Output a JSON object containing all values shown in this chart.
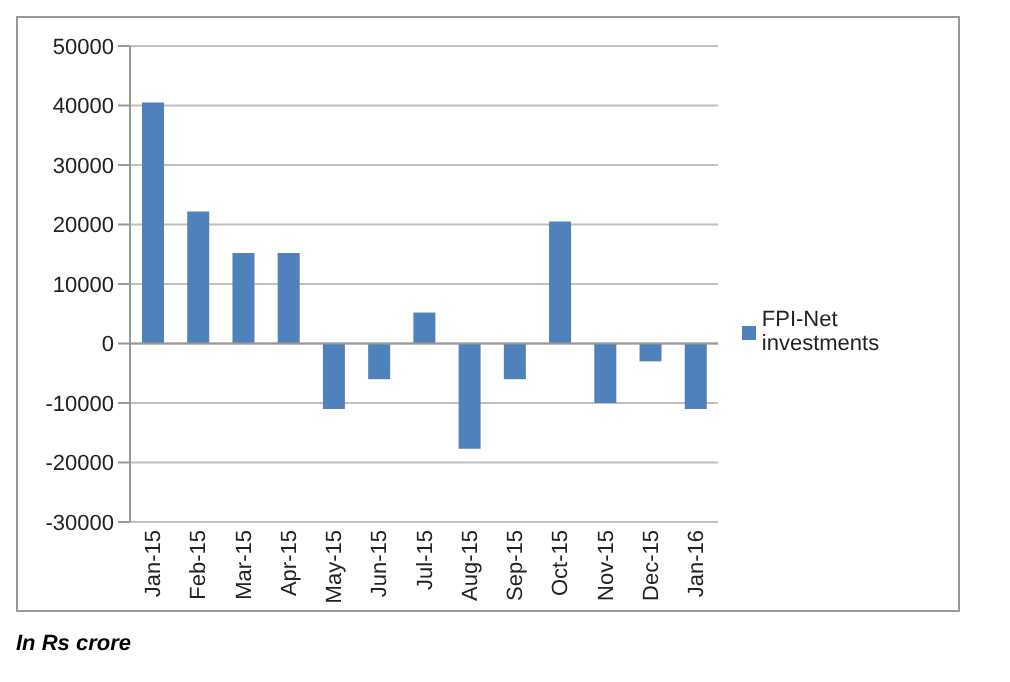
{
  "chart_data": {
    "type": "bar",
    "categories": [
      "Jan-15",
      "Feb-15",
      "Mar-15",
      "Apr-15",
      "May-15",
      "Jun-15",
      "Jul-15",
      "Aug-15",
      "Sep-15",
      "Oct-15",
      "Nov-15",
      "Dec-15",
      "Jan-16"
    ],
    "series": [
      {
        "name": "FPI-Net investments",
        "color": "#4f81bd",
        "values": [
          40500,
          22200,
          15200,
          15200,
          -11000,
          -6000,
          5200,
          -17700,
          -6000,
          20500,
          -10000,
          -3000,
          -11000
        ]
      }
    ],
    "ylim": [
      -30000,
      50000
    ],
    "yticks": [
      -30000,
      -20000,
      -10000,
      0,
      10000,
      20000,
      30000,
      40000,
      50000
    ],
    "grid": "y",
    "legend": "right",
    "annotations": [
      "In Rs crore"
    ]
  }
}
